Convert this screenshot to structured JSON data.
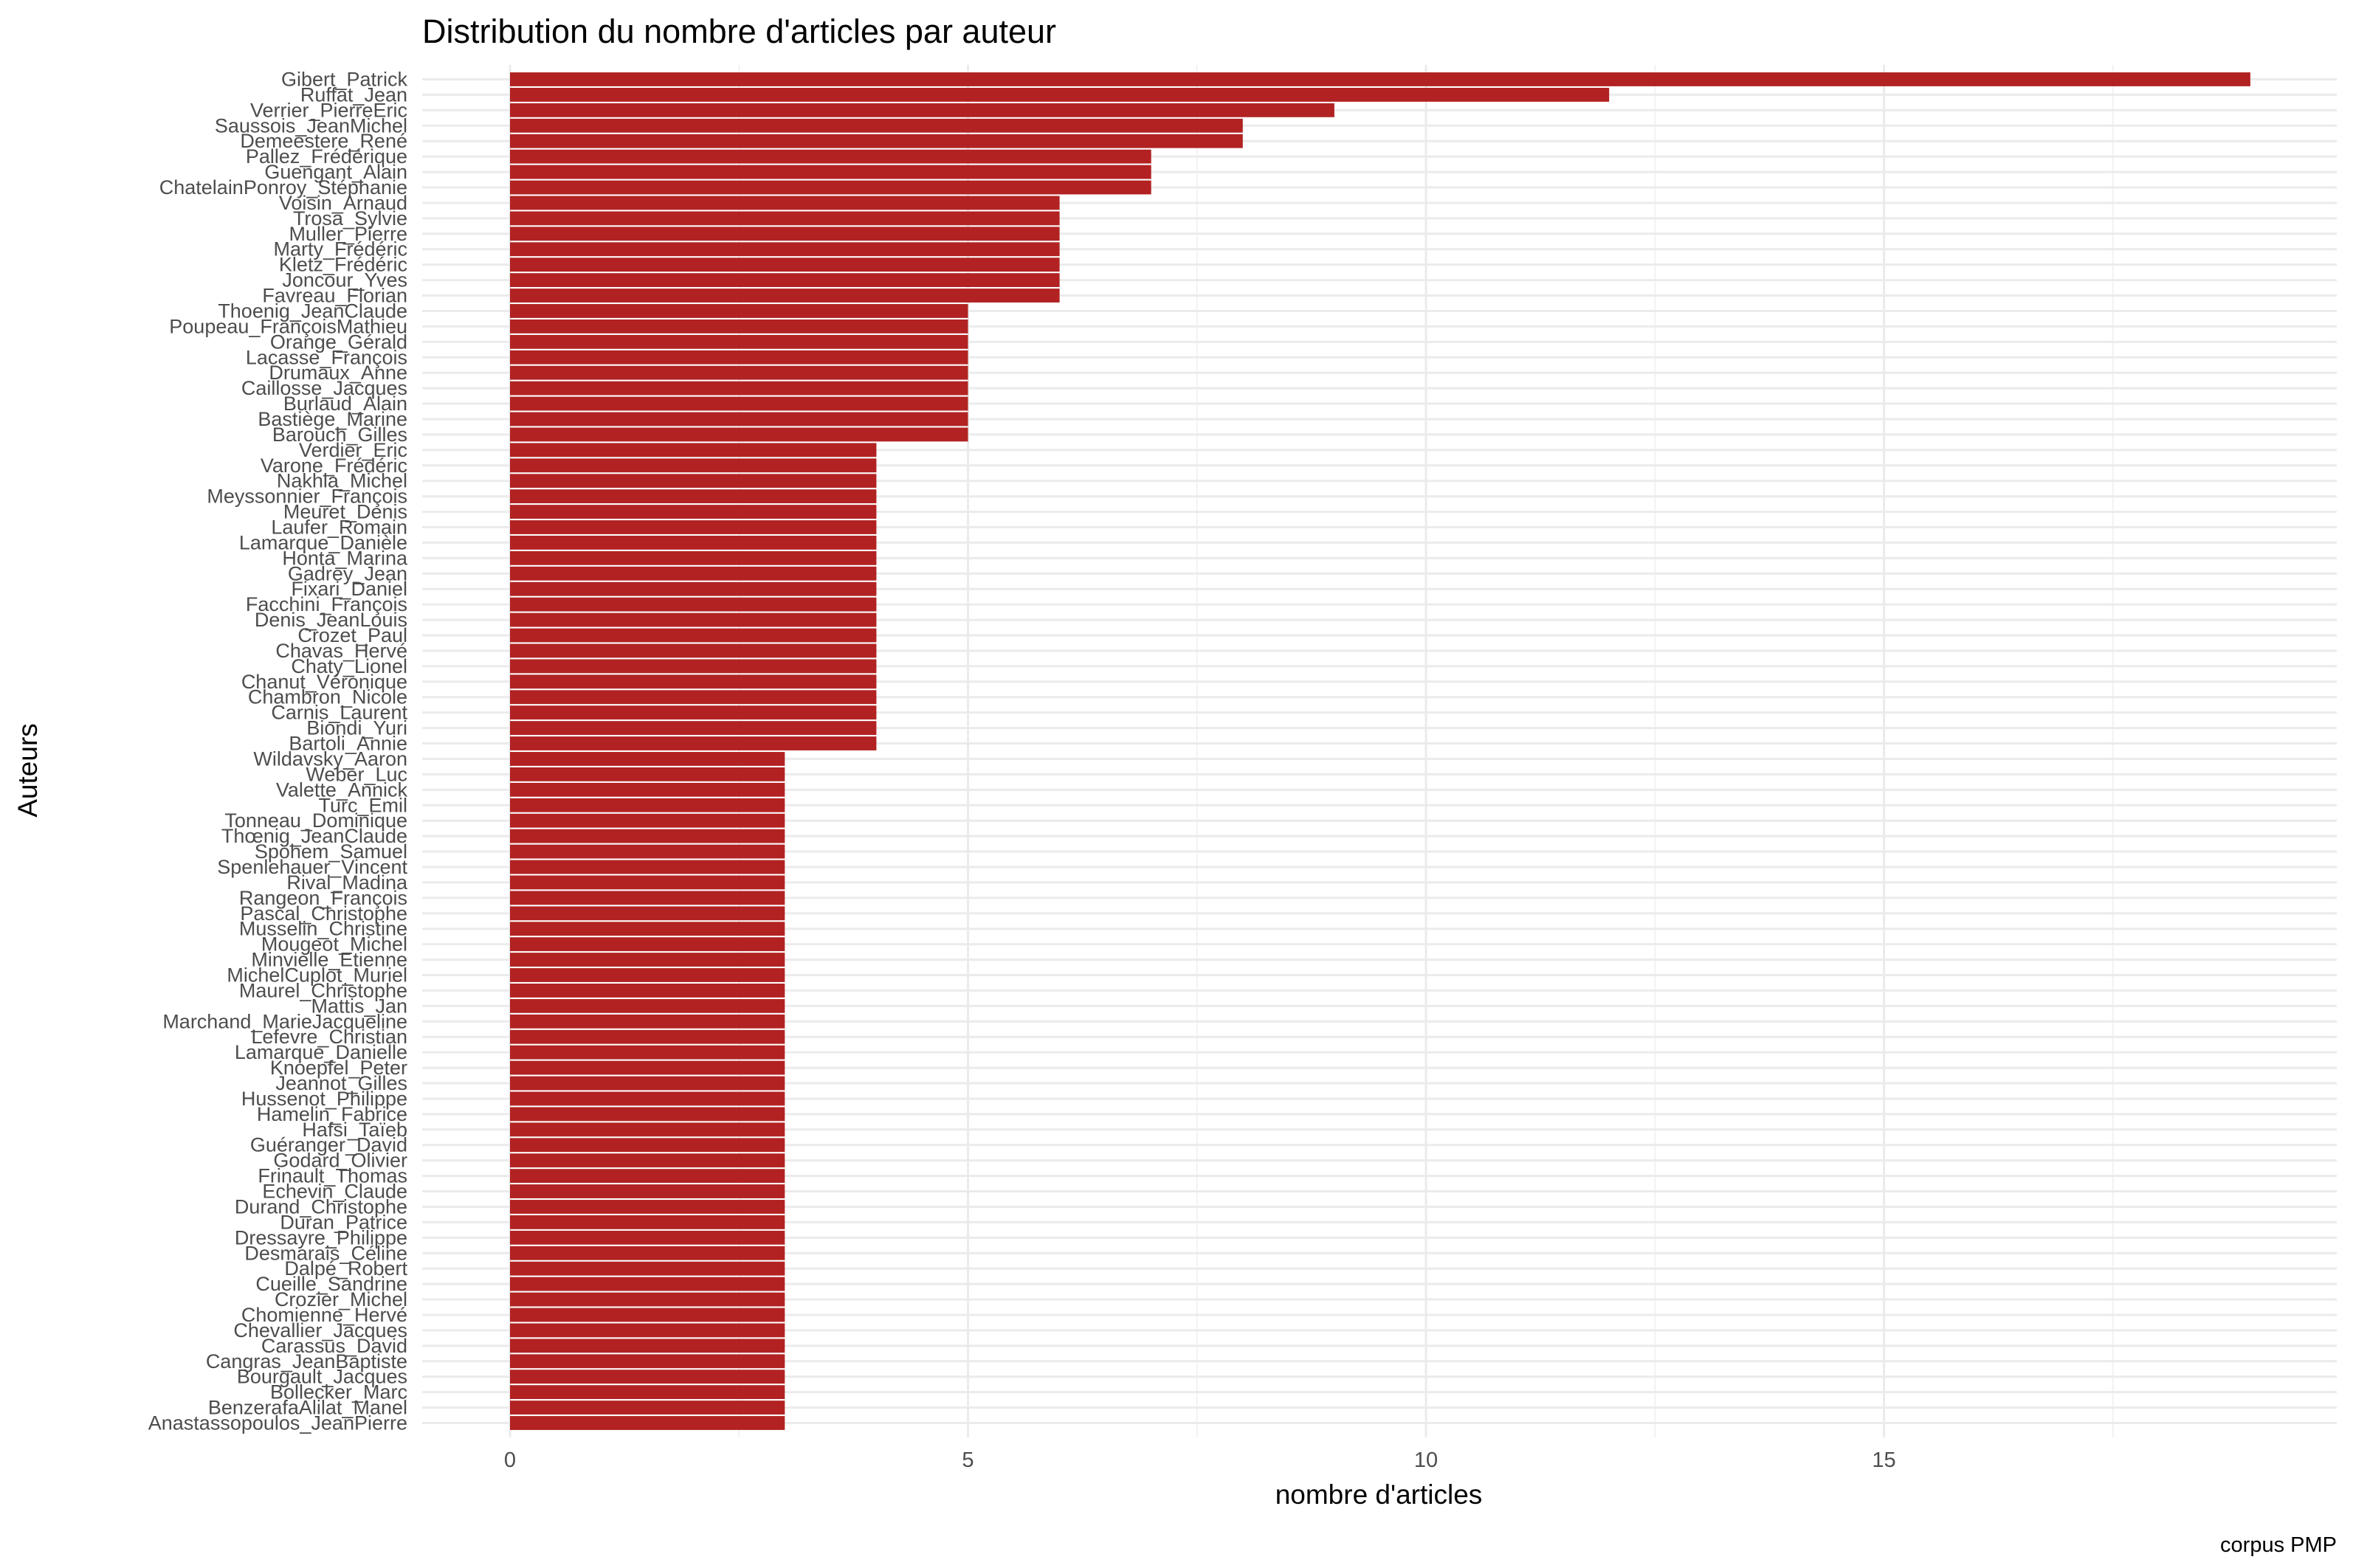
{
  "chart_data": {
    "type": "bar",
    "orientation": "horizontal",
    "title": "Distribution du nombre d'articles par auteur",
    "xlabel": "nombre d'articles",
    "ylabel": "Auteurs",
    "caption": "corpus PMP",
    "xlim": [
      0,
      19
    ],
    "xticks": [
      0,
      5,
      10,
      15
    ],
    "xtick_labels": [
      "0",
      "5",
      "10",
      "15"
    ],
    "grid": true,
    "bar_color": "#b22222",
    "categories": [
      "Gibert_Patrick",
      "Ruffat_Jean",
      "Verrier_PierreEric",
      "Saussois_JeanMichel",
      "Demeestere_René",
      "Pallez_Frédérique",
      "Guengant_Alain",
      "ChatelainPonroy_Stéphanie",
      "Voisin_Arnaud",
      "Trosa_Sylvie",
      "Muller_Pierre",
      "Marty_Frédéric",
      "Kletz_Frédéric",
      "Joncour_Yves",
      "Favreau_Florian",
      "Thoenig_JeanClaude",
      "Poupeau_FrançoisMathieu",
      "Orange_Gérald",
      "Lacasse_François",
      "Drumaux_Anne",
      "Caillosse_Jacques",
      "Burlaud_Alain",
      "Bastiège_Marine",
      "Barouch_Gilles",
      "Verdier_Eric",
      "Varone_Frédéric",
      "Nakhla_Michel",
      "Meyssonnier_François",
      "Meuret_Denis",
      "Laufer_Romain",
      "Lamarque_Danièle",
      "Honta_Marina",
      "Gadrey_Jean",
      "Fixari_Daniel",
      "Facchini_François",
      "Denis_JeanLouis",
      "Crozet_Paul",
      "Chavas_Hervé",
      "Chaty_Lionel",
      "Chanut_Véronique",
      "Chambron_Nicole",
      "Carnis_Laurent",
      "Biondi_Yuri",
      "Bartoli_Annie",
      "Wildavsky_Aaron",
      "Weber_Luc",
      "Valette_Annick",
      "Turc_Emil",
      "Tonneau_Dominique",
      "Thœnig_JeanClaude",
      "Spohem_Samuel",
      "Spenlehauer_Vincent",
      "Rival_Madina",
      "Rangeon_François",
      "Pascal_Christophe",
      "Musselin_Christine",
      "Mougeot_Michel",
      "Minvielle_Etienne",
      "MichelCuplot_Muriel",
      "Maurel_Christophe",
      "Mattis_Jan",
      "Marchand_MarieJacqueline",
      "Lefevre_Christian",
      "Lamarque_Danielle",
      "Knoepfel_Peter",
      "Jeannot_Gilles",
      "Hussenot_Philippe",
      "Hamelin_Fabrice",
      "Hafsi_Taïeb",
      "Guéranger_David",
      "Godard_Olivier",
      "Frinault_Thomas",
      "Echevin_Claude",
      "Durand_Christophe",
      "Duran_Patrice",
      "Dressayre_Philippe",
      "Desmarais_Céline",
      "Dalpé_Robert",
      "Cueille_Sandrine",
      "Crozier_Michel",
      "Chomienne_Hervé",
      "Chevallier_Jacques",
      "Carassus_David",
      "Cangras_JeanBaptiste",
      "Bourgault_Jacques",
      "Bollecker_Marc",
      "BenzerafaAlilat_Manel",
      "Anastassopoulos_JeanPierre"
    ],
    "values": [
      19,
      12,
      9,
      8,
      8,
      7,
      7,
      7,
      6,
      6,
      6,
      6,
      6,
      6,
      6,
      5,
      5,
      5,
      5,
      5,
      5,
      5,
      5,
      5,
      4,
      4,
      4,
      4,
      4,
      4,
      4,
      4,
      4,
      4,
      4,
      4,
      4,
      4,
      4,
      4,
      4,
      4,
      4,
      4,
      3,
      3,
      3,
      3,
      3,
      3,
      3,
      3,
      3,
      3,
      3,
      3,
      3,
      3,
      3,
      3,
      3,
      3,
      3,
      3,
      3,
      3,
      3,
      3,
      3,
      3,
      3,
      3,
      3,
      3,
      3,
      3,
      3,
      3,
      3,
      3,
      3,
      3,
      3,
      3,
      3,
      3,
      3,
      3
    ]
  }
}
